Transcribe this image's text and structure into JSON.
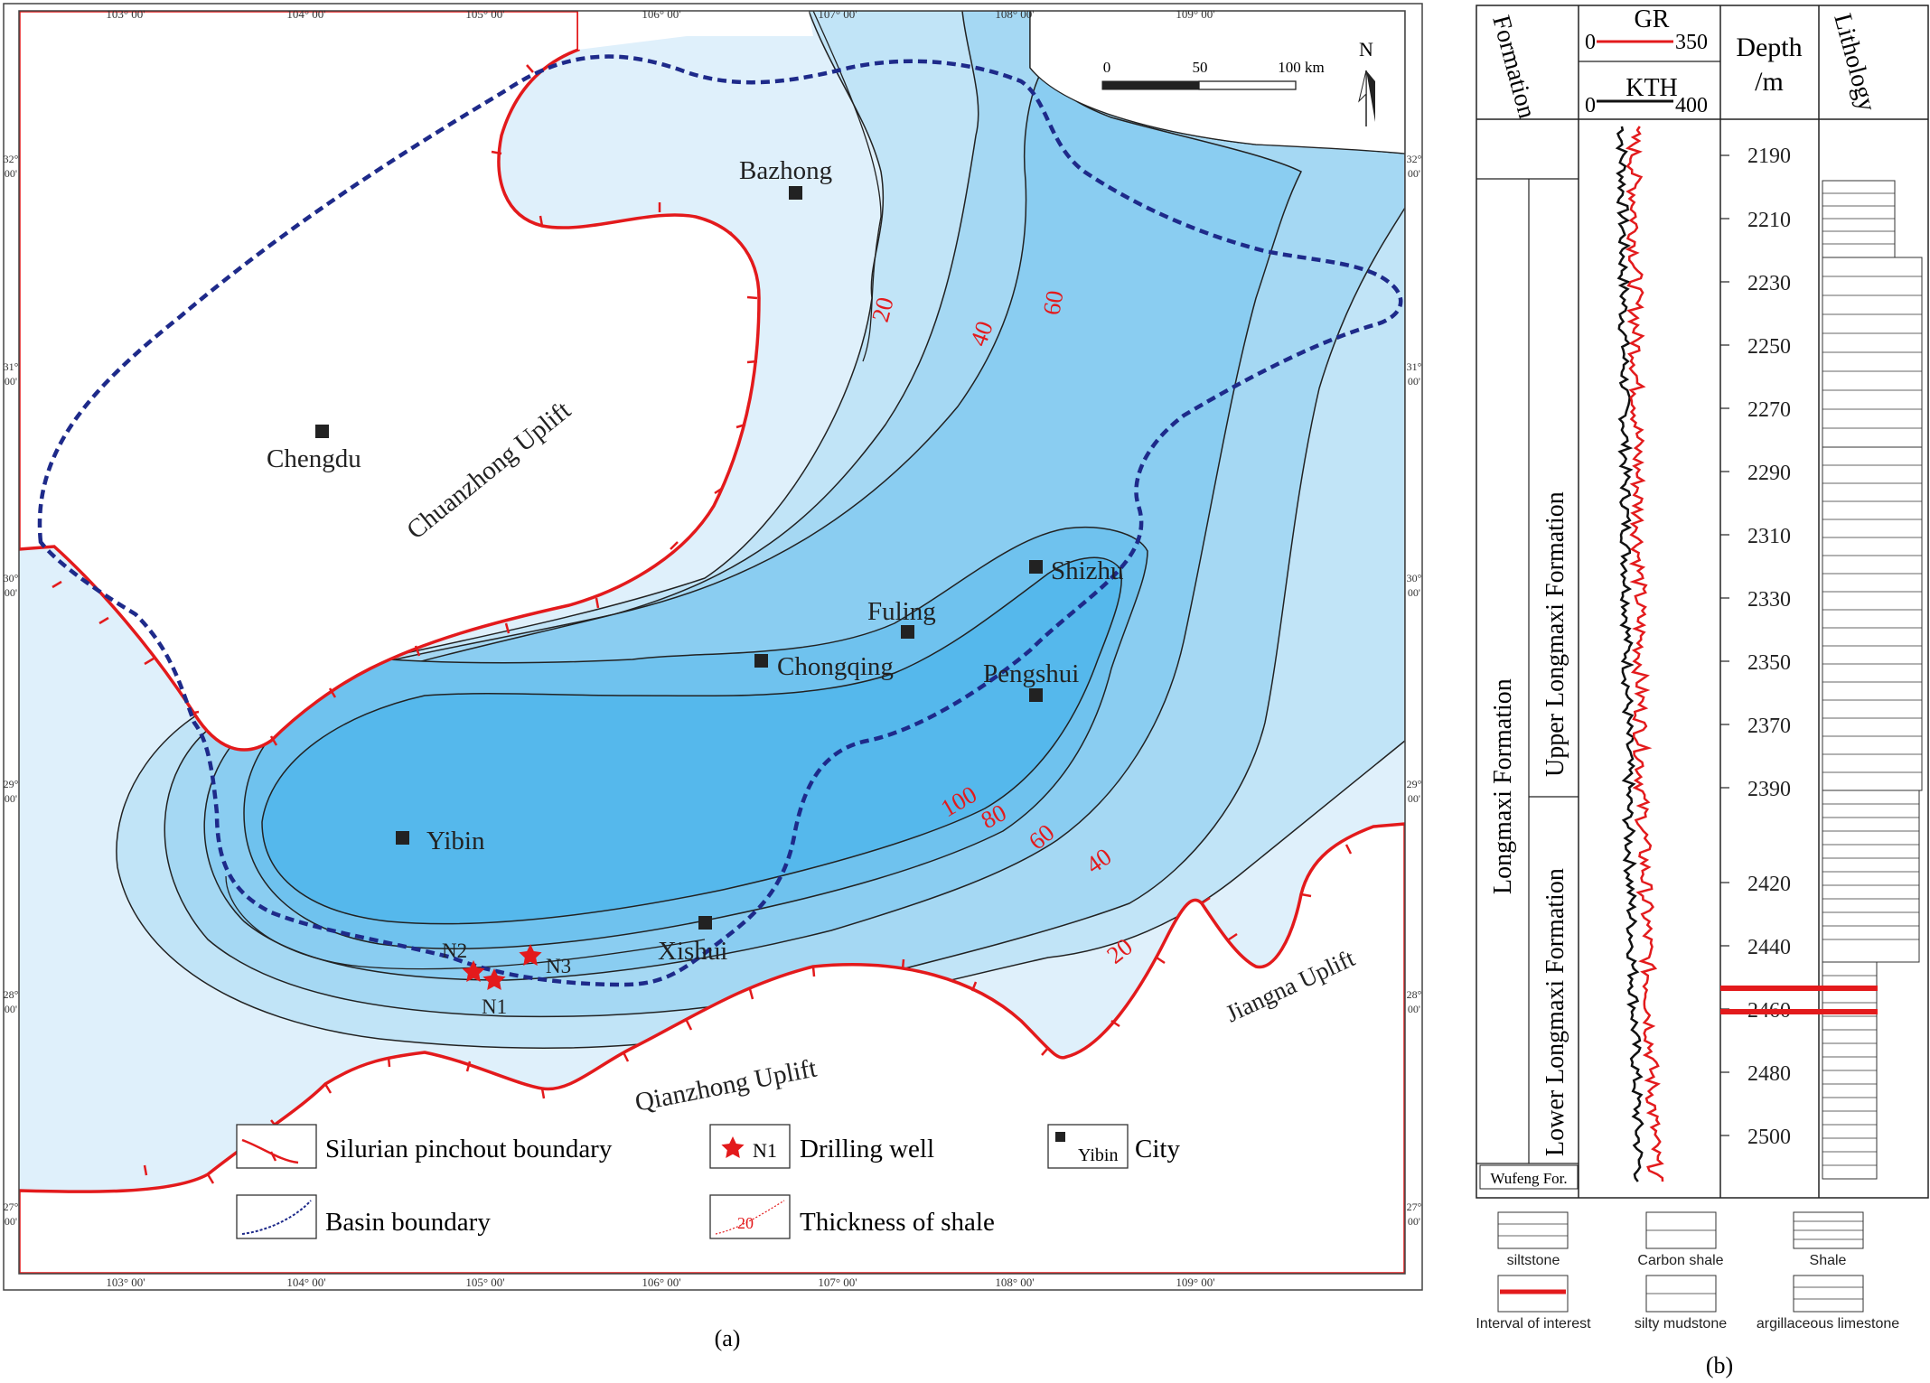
{
  "panel_a": {
    "caption": "(a)",
    "lon_ticks": [
      "103° 00'",
      "104° 00'",
      "105° 00'",
      "106° 00'",
      "107° 00'",
      "108° 00'",
      "109° 00'"
    ],
    "lat_ticks": [
      {
        "deg": "32°",
        "min": "00'"
      },
      {
        "deg": "31°",
        "min": "00'"
      },
      {
        "deg": "30°",
        "min": "00'"
      },
      {
        "deg": "29°",
        "min": "00'"
      },
      {
        "deg": "28°",
        "min": "00'"
      },
      {
        "deg": "27°",
        "min": "00'"
      }
    ],
    "scale": {
      "zero": "0",
      "mid": "50",
      "end": "100 km"
    },
    "north": "N",
    "cities": [
      "Bazhong",
      "Chengdu",
      "Chongqing",
      "Fuling",
      "Shizhu",
      "Pengshui",
      "Yibin",
      "Xishui"
    ],
    "wells": [
      "N1",
      "N2",
      "N3"
    ],
    "regions": [
      "Chuanzhong Uplift",
      "Qianzhong Uplift",
      "Jiangna Uplift"
    ],
    "contour_labels": [
      "20",
      "40",
      "60",
      "100",
      "80",
      "60",
      "40",
      "20"
    ],
    "legend": {
      "pinchout": "Silurian pinchout boundary",
      "well_code": "N1",
      "well": "Drilling well",
      "city_code": "Yibin",
      "city": "City",
      "basin": "Basin boundary",
      "thickness_code": "20",
      "thickness": "Thickness of shale"
    },
    "colors": {
      "pinchout": "#e31a1c",
      "basin_boundary": "#1e2a8a",
      "shade_1": "#dff0fb",
      "shade_2": "#c1e4f7",
      "shade_3": "#a5d8f3",
      "shade_4": "#8acdf1",
      "shade_5": "#6fc2ee",
      "shade_6": "#55b8ec"
    }
  },
  "panel_b": {
    "caption": "(b)",
    "headers": {
      "formation": "Formation",
      "gr": "GR",
      "gr_min": "0",
      "gr_max": "350",
      "kth": "KTH",
      "kth_min": "0",
      "kth_max": "400",
      "depth": "Depth",
      "depth_unit": "/m",
      "lithology": "Lithology"
    },
    "formations": {
      "main": "Longmaxi Formation",
      "upper": "Upper Longmaxi Formation",
      "lower": "Lower Longmaxi Formation",
      "base": "Wufeng For."
    },
    "depth_ticks": [
      "2190",
      "2210",
      "2230",
      "2250",
      "2270",
      "2290",
      "2310",
      "2330",
      "2350",
      "2370",
      "2390",
      "2420",
      "2440",
      "2460",
      "2480",
      "2500"
    ],
    "legend": {
      "siltstone": "siltstone",
      "carbon_shale": "Carbon shale",
      "shale": "Shale",
      "interval": "Interval of interest",
      "silty_mudstone": "silty mudstone",
      "argillaceous_limestone": "argillaceous limestone"
    },
    "colors": {
      "gr": "#e31a1c",
      "kth": "#111111",
      "interval": "#e31a1c"
    }
  }
}
